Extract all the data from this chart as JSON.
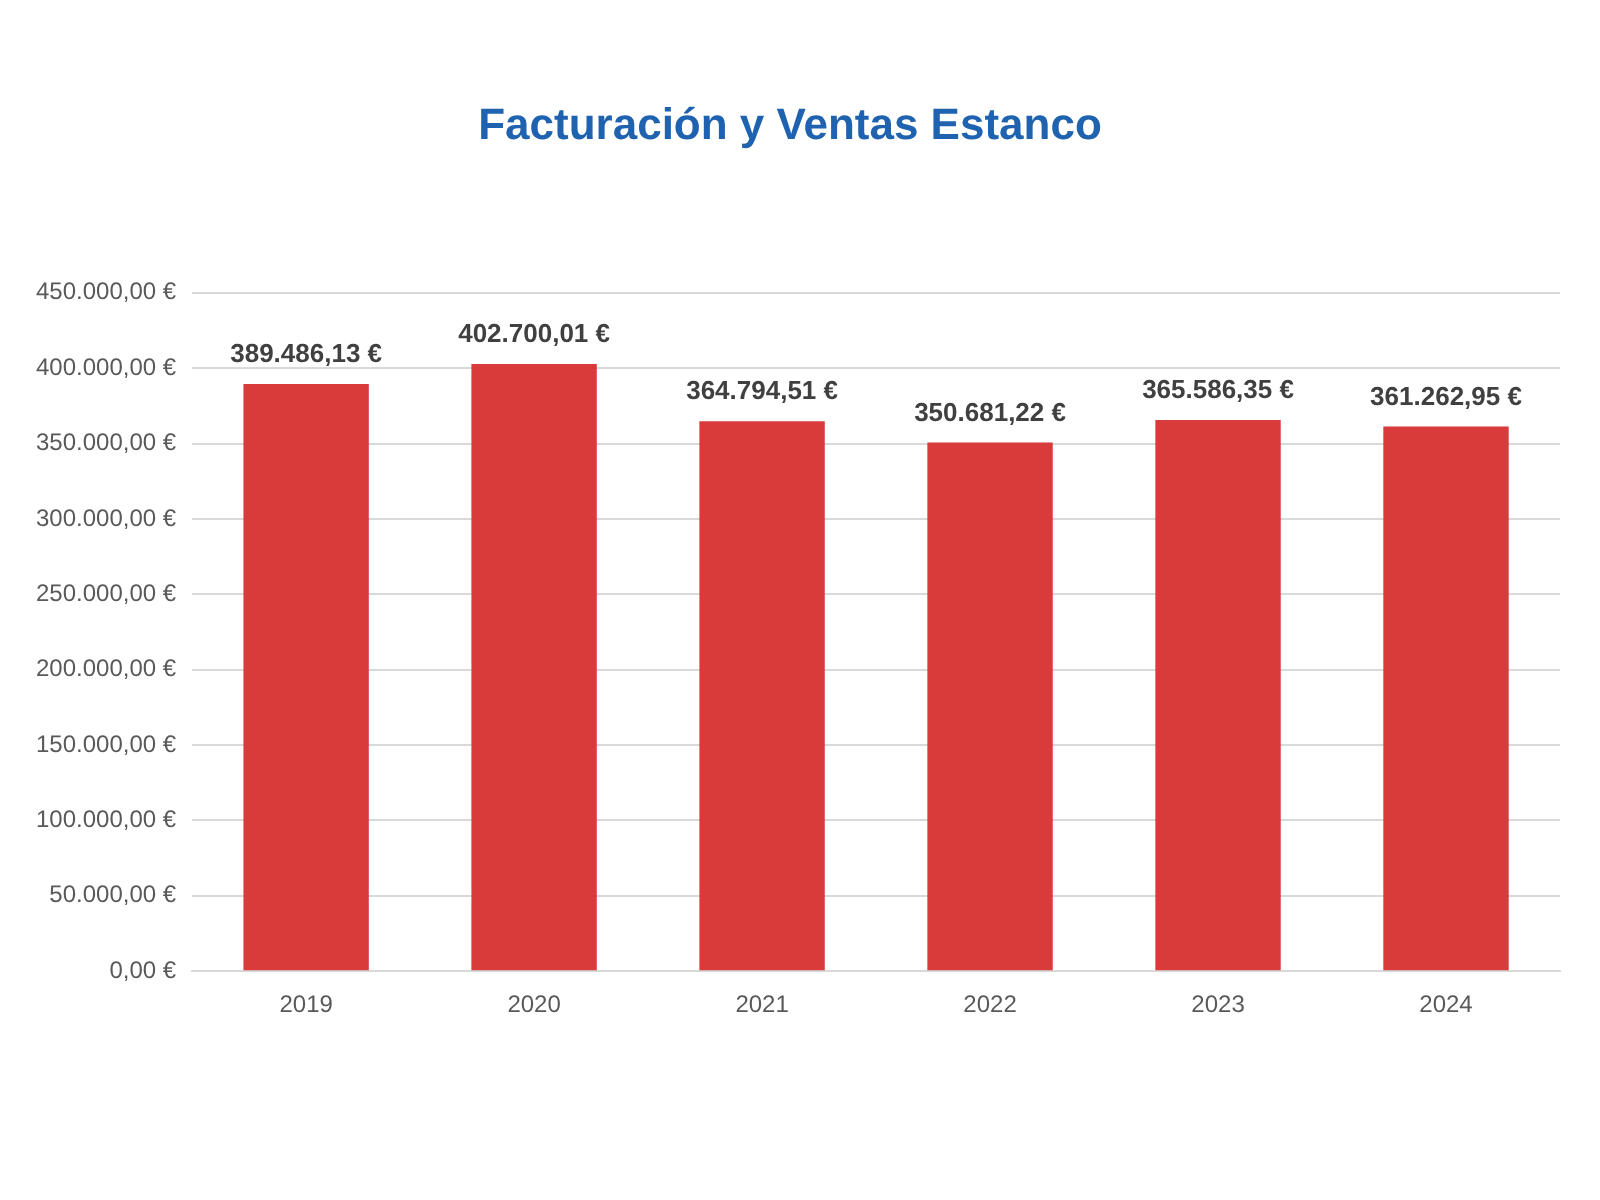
{
  "chart_data": {
    "type": "bar",
    "title": "Facturación y Ventas Estanco",
    "categories": [
      "2019",
      "2020",
      "2021",
      "2022",
      "2023",
      "2024"
    ],
    "values": [
      389486.13,
      402700.01,
      364794.51,
      350681.22,
      365586.35,
      361262.95
    ],
    "value_labels": [
      "389.486,13 €",
      "402.700,01 €",
      "364.794,51 €",
      "350.681,22 €",
      "365.586,35 €",
      "361.262,95 €"
    ],
    "color": "#d93a3a",
    "ylim": [
      0,
      450000
    ],
    "yticks": [
      {
        "value": 0,
        "label": "0,00 €"
      },
      {
        "value": 50000,
        "label": "50.000,00 €"
      },
      {
        "value": 100000,
        "label": "100.000,00 €"
      },
      {
        "value": 150000,
        "label": "150.000,00 €"
      },
      {
        "value": 200000,
        "label": "200.000,00 €"
      },
      {
        "value": 250000,
        "label": "250.000,00 €"
      },
      {
        "value": 300000,
        "label": "300.000,00 €"
      },
      {
        "value": 350000,
        "label": "350.000,00 €"
      },
      {
        "value": 400000,
        "label": "400.000,00 €"
      },
      {
        "value": 450000,
        "label": "450.000,00 €"
      }
    ],
    "grid": "y"
  }
}
